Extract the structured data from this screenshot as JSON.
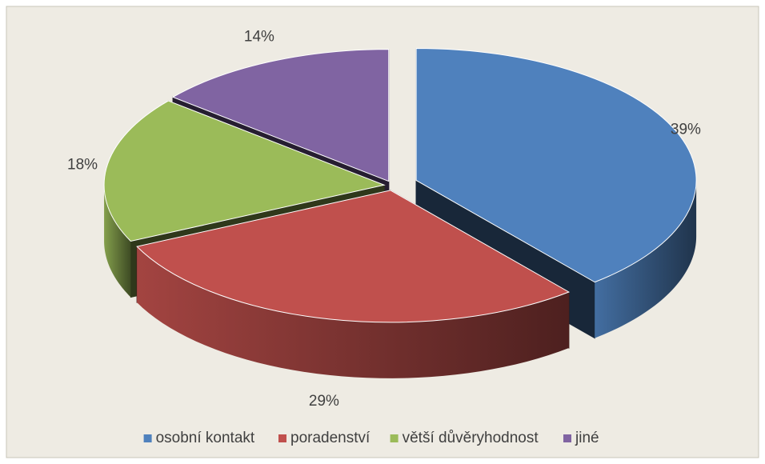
{
  "chart_data": {
    "type": "pie",
    "categories": [
      "osobní kontakt",
      "poradenství",
      "větší důvěryhodnost",
      "jiné"
    ],
    "values": [
      39,
      29,
      18,
      14
    ],
    "value_labels": [
      "39%",
      "29%",
      "18%",
      "14%"
    ],
    "colors": [
      "#4f81bd",
      "#c0504d",
      "#9bbb59",
      "#8064a2"
    ],
    "legend": "bottom"
  }
}
